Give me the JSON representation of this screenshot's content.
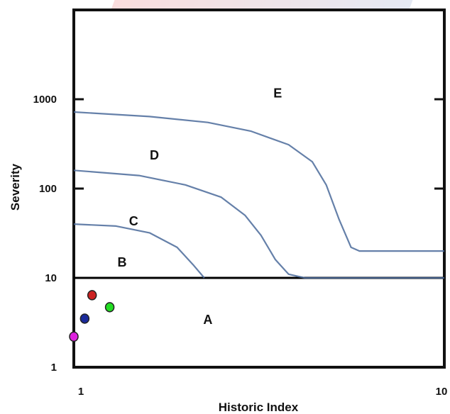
{
  "chart_data": {
    "type": "line",
    "title": "",
    "xlabel": "Historic Index",
    "ylabel": "Severity",
    "xlim": [
      1,
      10
    ],
    "ylim": [
      1,
      10000
    ],
    "yscale": "log",
    "x_tick_labels": [
      "1",
      "10"
    ],
    "y_tick_labels": [
      "1",
      "10",
      "100",
      "1000"
    ],
    "grid": false,
    "series": [
      {
        "color": "#4a6a9a",
        "points": [
          [
            1.0,
            40
          ],
          [
            1.3,
            38
          ],
          [
            1.6,
            32
          ],
          [
            1.9,
            22
          ],
          [
            2.1,
            14
          ],
          [
            2.25,
            10
          ]
        ]
      },
      {
        "color": "#4a6a9a",
        "points": [
          [
            1.0,
            160
          ],
          [
            1.5,
            140
          ],
          [
            2.0,
            110
          ],
          [
            2.5,
            80
          ],
          [
            2.9,
            50
          ],
          [
            3.2,
            30
          ],
          [
            3.5,
            16
          ],
          [
            3.8,
            11
          ],
          [
            4.2,
            10
          ],
          [
            10,
            10
          ]
        ]
      },
      {
        "color": "#4a6a9a",
        "points": [
          [
            1.0,
            720
          ],
          [
            1.6,
            640
          ],
          [
            2.3,
            550
          ],
          [
            3.0,
            440
          ],
          [
            3.8,
            310
          ],
          [
            4.4,
            200
          ],
          [
            4.8,
            110
          ],
          [
            5.2,
            45
          ],
          [
            5.6,
            22
          ],
          [
            5.9,
            20
          ],
          [
            10,
            20
          ]
        ]
      }
    ],
    "threshold_line": {
      "y": 10,
      "color": "#000000"
    },
    "regions": [
      {
        "label": "A",
        "x": 2.3,
        "y": 3.4
      },
      {
        "label": "B",
        "x": 1.35,
        "y": 15
      },
      {
        "label": "C",
        "x": 1.45,
        "y": 43
      },
      {
        "label": "D",
        "x": 1.65,
        "y": 235
      },
      {
        "label": "E",
        "x": 3.55,
        "y": 1170
      }
    ],
    "points": [
      {
        "x": 1.12,
        "y": 6.4,
        "color": "#cc2222"
      },
      {
        "x": 1.25,
        "y": 4.7,
        "color": "#22dd22"
      },
      {
        "x": 1.07,
        "y": 3.5,
        "color": "#1a2a9a"
      },
      {
        "x": 1.0,
        "y": 2.2,
        "color": "#dd22dd"
      }
    ]
  }
}
